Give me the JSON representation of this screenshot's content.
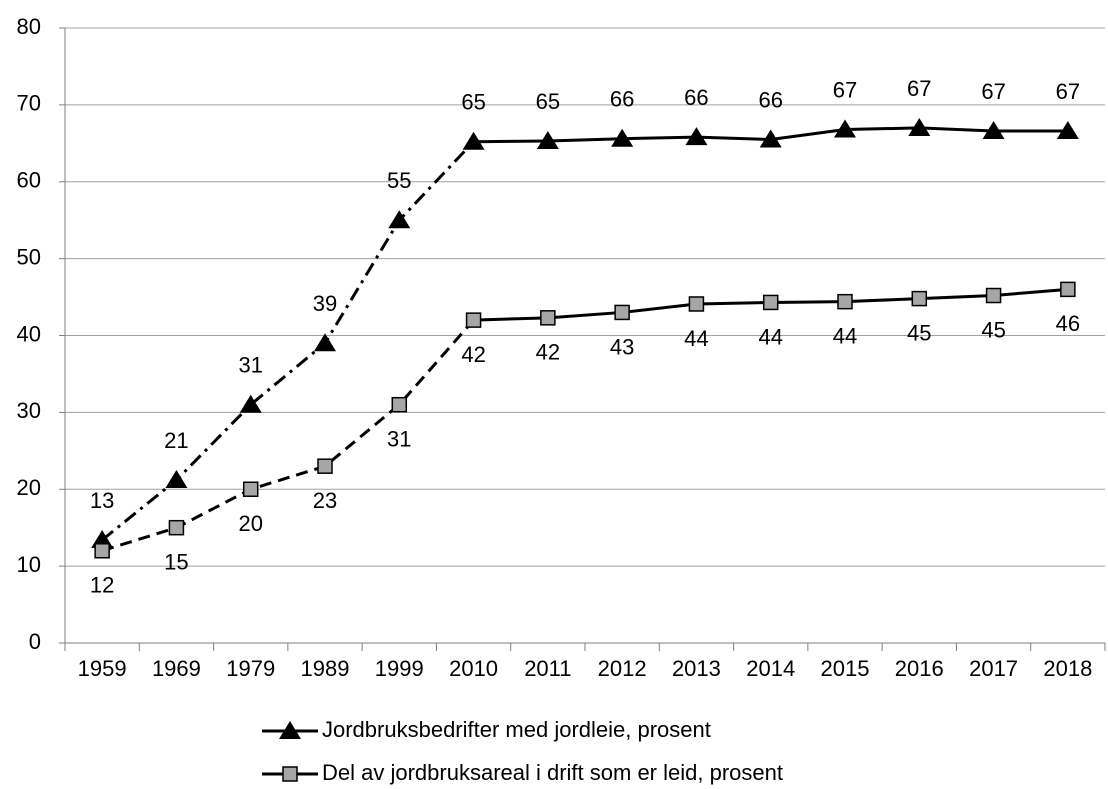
{
  "chart_data": {
    "type": "line",
    "categories": [
      "1959",
      "1969",
      "1979",
      "1989",
      "1999",
      "2010",
      "2011",
      "2012",
      "2013",
      "2014",
      "2015",
      "2016",
      "2017",
      "2018"
    ],
    "series": [
      {
        "name": "Jordbruksbedrifter med jordleie, prosent",
        "color": "#000000",
        "marker": "triangle",
        "style": "dashdot",
        "values": [
          13.4,
          21.2,
          31,
          39,
          55,
          65.2,
          65.3,
          65.6,
          65.8,
          65.5,
          66.8,
          67,
          66.6,
          66.6
        ],
        "value_labels": [
          "13",
          "21",
          "31",
          "39",
          "55",
          "65",
          "65",
          "66",
          "66",
          "66",
          "67",
          "67",
          "67",
          "67"
        ]
      },
      {
        "name": "Del av jordbruksareal i drift som er leid, prosent",
        "color": "#a6a6a6",
        "marker": "square",
        "style": "dashed",
        "values": [
          12,
          15,
          20,
          23,
          31,
          42,
          42.3,
          43,
          44.1,
          44.3,
          44.4,
          44.8,
          45.2,
          46
        ],
        "value_labels": [
          "12",
          "15",
          "20",
          "23",
          "31",
          "42",
          "42",
          "43",
          "44",
          "44",
          "44",
          "45",
          "45",
          "46"
        ]
      }
    ],
    "solid_from": "2010",
    "ylim": [
      0,
      80
    ],
    "yticks": [
      0,
      10,
      20,
      30,
      40,
      50,
      60,
      70,
      80
    ],
    "grid": true,
    "legend": "bottom"
  }
}
